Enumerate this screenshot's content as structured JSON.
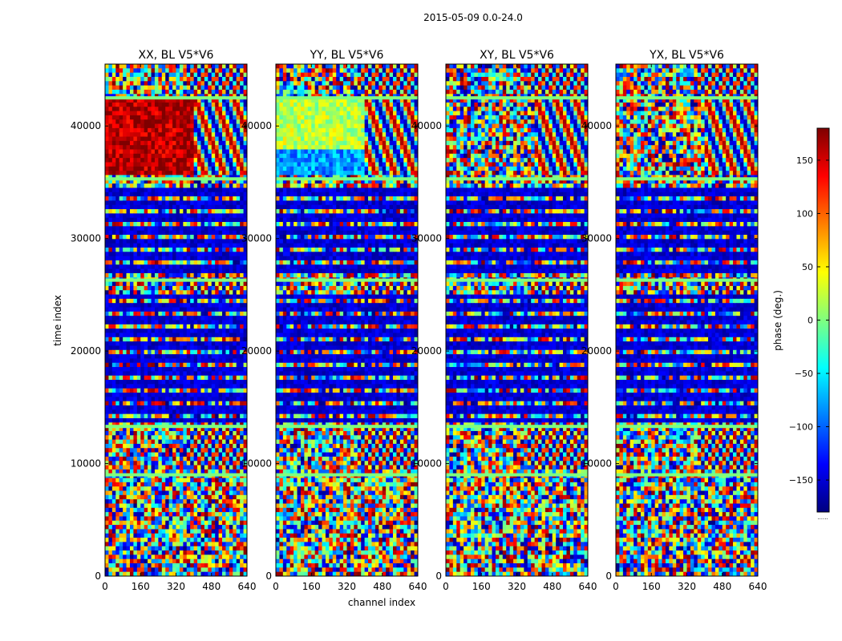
{
  "chart_data": {
    "type": "heatmap",
    "suptitle": "2015-05-09 0.0-24.0",
    "xlabel": "channel index",
    "ylabel": "time index",
    "xlim": [
      0,
      640
    ],
    "ylim": [
      0,
      45500
    ],
    "xticks": [
      0,
      160,
      320,
      480,
      640
    ],
    "yticks": [
      0,
      10000,
      20000,
      30000,
      40000
    ],
    "colorbar": {
      "label": "phase (deg.)",
      "range": [
        -180,
        180
      ],
      "ticks": [
        -150,
        -100,
        -50,
        0,
        50,
        100,
        150
      ],
      "tick_labels": [
        "−150",
        "−100",
        "−50",
        "0",
        "50",
        "100",
        "150"
      ],
      "colormap": "jet",
      "stops": [
        "#00007f",
        "#0000ff",
        "#007fff",
        "#00ffff",
        "#7fff7f",
        "#ffff00",
        "#ff7f00",
        "#ff0000",
        "#7f0000"
      ],
      "extra_label": "......"
    },
    "panels": [
      {
        "title": "XX, BL V5*V6",
        "polarization": "XX"
      },
      {
        "title": "YY, BL V5*V6",
        "polarization": "YY"
      },
      {
        "title": "XY, BL V5*V6",
        "polarization": "XY"
      },
      {
        "title": "YX, BL V5*V6",
        "polarization": "YX"
      }
    ],
    "time_bands": [
      {
        "from": 42500,
        "to": 45500,
        "pattern": "fringe",
        "level": 0
      },
      {
        "from": 35500,
        "to": 42500,
        "pattern": "block",
        "level": 0
      },
      {
        "from": 26500,
        "to": 35000,
        "pattern": "stripes",
        "level": -170
      },
      {
        "from": 25000,
        "to": 26500,
        "pattern": "fringe",
        "level": 10
      },
      {
        "from": 13500,
        "to": 25000,
        "pattern": "stripes",
        "level": -170
      },
      {
        "from": 9500,
        "to": 13500,
        "pattern": "fringe",
        "level": 0
      },
      {
        "from": 0,
        "to": 9500,
        "pattern": "noise",
        "level": 0
      }
    ],
    "panel_block_levels": [
      160,
      20,
      0,
      0
    ],
    "panel_block_lower_levels": [
      160,
      -80,
      0,
      0
    ],
    "block_split_channel": 400
  }
}
